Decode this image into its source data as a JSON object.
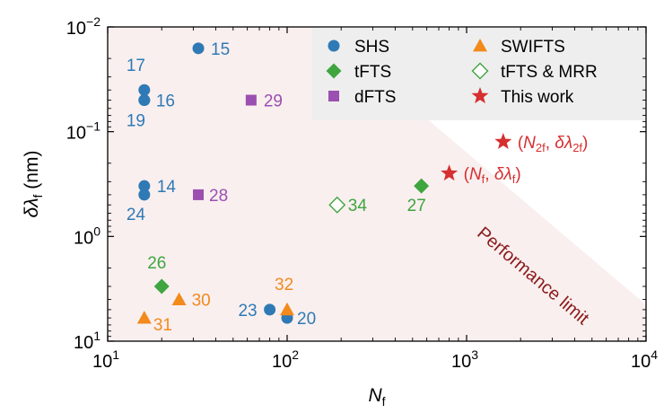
{
  "chart_data": {
    "type": "scatter",
    "xlabel": {
      "base": "N",
      "sub": "f"
    },
    "ylabel": {
      "base": "δλ",
      "sub": "f",
      "unit": " (nm)"
    },
    "xscale": "log",
    "yscale": "log-inverted",
    "xlim": [
      10,
      10000
    ],
    "ylim": [
      0.01,
      10
    ],
    "x_ticks": [
      {
        "value": 10,
        "base": "10",
        "exp": "1"
      },
      {
        "value": 100,
        "base": "10",
        "exp": "2"
      },
      {
        "value": 1000,
        "base": "10",
        "exp": "3"
      },
      {
        "value": 10000,
        "base": "10",
        "exp": "4"
      }
    ],
    "y_ticks": [
      {
        "value": 0.01,
        "base": "10",
        "exp": "−2"
      },
      {
        "value": 0.1,
        "base": "10",
        "exp": "−1"
      },
      {
        "value": 1,
        "base": "10",
        "exp": "0"
      },
      {
        "value": 10,
        "base": "10",
        "exp": "1"
      }
    ],
    "colors": {
      "shs": "#2f7ab5",
      "tfts": "#3fa53f",
      "dfts": "#9b4fb0",
      "swifts": "#f28a1c",
      "mrr": "#3fa53f",
      "this_work": "#d62f2f",
      "limit_text": "#8b1a1a",
      "limit_fill": "#f9efef"
    },
    "legend": {
      "position": "top-right",
      "entries": [
        {
          "id": "shs",
          "label": "SHS",
          "marker": "circle"
        },
        {
          "id": "swifts",
          "label": "SWIFTS",
          "marker": "triangle"
        },
        {
          "id": "tfts",
          "label": "tFTS",
          "marker": "diamond"
        },
        {
          "id": "mrr",
          "label": "tFTS & MRR",
          "marker": "diamond-open"
        },
        {
          "id": "dfts",
          "label": "dFTS",
          "marker": "square"
        },
        {
          "id": "this_work",
          "label": "This work",
          "marker": "star"
        }
      ]
    },
    "series": [
      {
        "id": "shs",
        "name": "SHS",
        "points": [
          {
            "x": 32,
            "y": 0.016,
            "label": "15"
          },
          {
            "x": 16,
            "y": 0.04,
            "label": "17"
          },
          {
            "x": 16,
            "y": 0.05,
            "label": "16"
          },
          {
            "x": 16,
            "y": 0.05,
            "label": "19"
          },
          {
            "x": 16,
            "y": 0.33,
            "label": "14"
          },
          {
            "x": 16,
            "y": 0.4,
            "label": "24"
          },
          {
            "x": 80,
            "y": 5,
            "label": "23"
          },
          {
            "x": 100,
            "y": 6,
            "label": "20"
          }
        ]
      },
      {
        "id": "tfts",
        "name": "tFTS",
        "points": [
          {
            "x": 20,
            "y": 3,
            "label": "26"
          },
          {
            "x": 560,
            "y": 0.33,
            "label": "27"
          }
        ]
      },
      {
        "id": "dfts",
        "name": "dFTS",
        "points": [
          {
            "x": 63,
            "y": 0.05,
            "label": "29"
          },
          {
            "x": 32,
            "y": 0.4,
            "label": "28"
          }
        ]
      },
      {
        "id": "swifts",
        "name": "SWIFTS",
        "points": [
          {
            "x": 16,
            "y": 6,
            "label": "31"
          },
          {
            "x": 25,
            "y": 4,
            "label": "30"
          },
          {
            "x": 100,
            "y": 5,
            "label": "32"
          }
        ]
      },
      {
        "id": "mrr",
        "name": "tFTS & MRR",
        "points": [
          {
            "x": 190,
            "y": 0.5,
            "label": "34"
          }
        ]
      },
      {
        "id": "this_work",
        "name": "This work",
        "points": [
          {
            "x": 1600,
            "y": 0.125,
            "label": {
              "pre": "(",
              "base1": "N",
              "sub1": "2f",
              "mid": ", ",
              "base2": "δλ",
              "sub2": "2f",
              "post": ")"
            }
          },
          {
            "x": 800,
            "y": 0.25,
            "label": {
              "pre": "(",
              "base1": "N",
              "sub1": "f",
              "mid": ", ",
              "base2": "δλ",
              "sub2": "f",
              "post": ")"
            }
          }
        ]
      }
    ],
    "annotations": {
      "limit_text": "Performance limit"
    }
  }
}
